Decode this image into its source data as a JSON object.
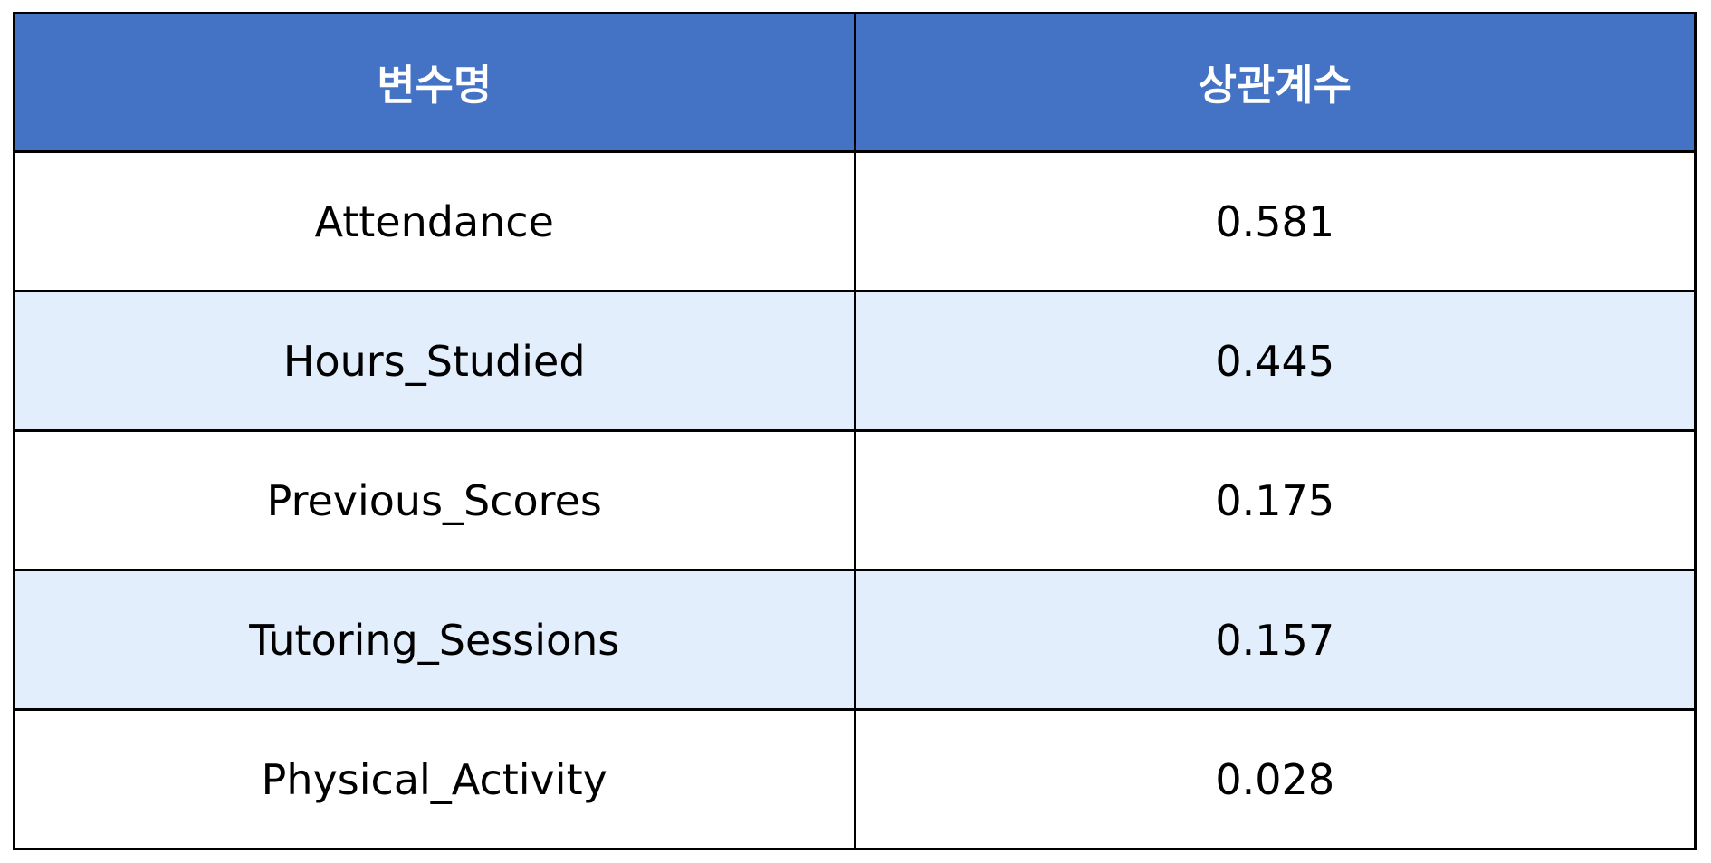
{
  "table": {
    "headers": [
      "변수명",
      "상관계수"
    ],
    "rows": [
      {
        "variable": "Attendance",
        "coefficient": "0.581"
      },
      {
        "variable": "Hours_Studied",
        "coefficient": "0.445"
      },
      {
        "variable": "Previous_Scores",
        "coefficient": "0.175"
      },
      {
        "variable": "Tutoring_Sessions",
        "coefficient": "0.157"
      },
      {
        "variable": "Physical_Activity",
        "coefficient": "0.028"
      }
    ]
  },
  "colors": {
    "header_bg": "#4472c4",
    "header_text": "#ffffff",
    "row_alt_bg": "#e3eefc",
    "border": "#000000"
  }
}
